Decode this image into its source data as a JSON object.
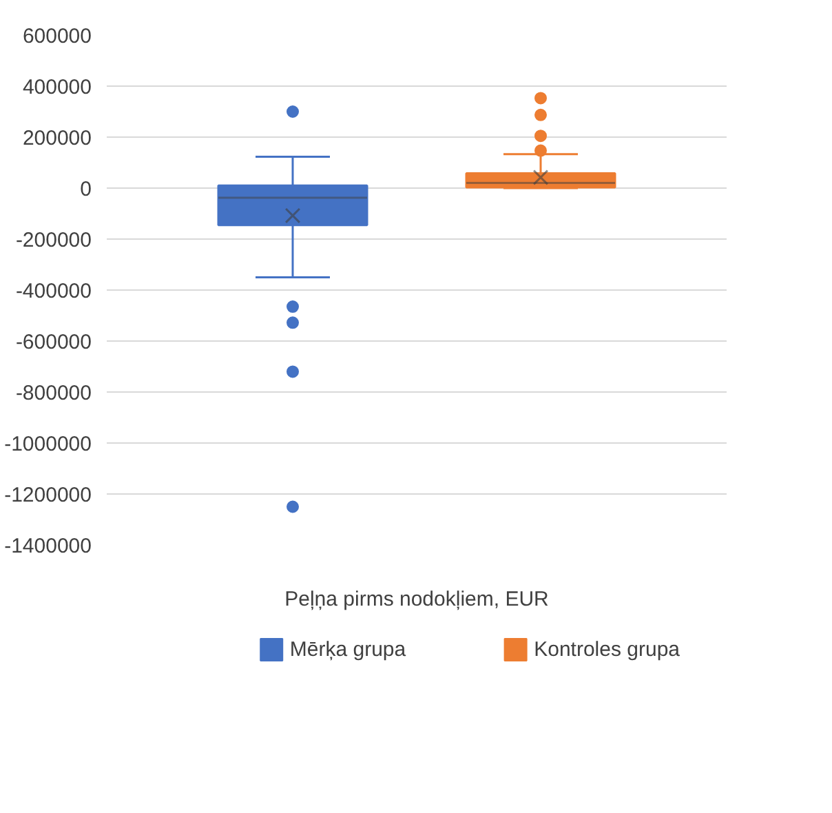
{
  "chart_data": {
    "type": "box",
    "categories": [
      "Peļņa pirms nodokļiem, EUR"
    ],
    "series": [
      {
        "name": "Mērķa grupa",
        "color": "#4472c4",
        "boxes": [
          {
            "low": -350000,
            "q1": -145000,
            "median": -38000,
            "q3": 10000,
            "high": 123000,
            "mean": -108000,
            "outliers": [
              300000,
              -465000,
              -528000,
              -720000,
              -1250000
            ]
          }
        ]
      },
      {
        "name": "Kontroles grupa",
        "color": "#ed7d31",
        "boxes": [
          {
            "low": 0,
            "q1": 3000,
            "median": 20000,
            "q3": 58000,
            "high": 133000,
            "mean": 42000,
            "outliers": [
              353000,
              287000,
              205000,
              147000
            ]
          }
        ]
      }
    ],
    "ylim": [
      -1400000,
      600000
    ],
    "yticks": [
      -1400000,
      -1200000,
      -1000000,
      -800000,
      -600000,
      -400000,
      -200000,
      0,
      200000,
      400000,
      600000
    ],
    "grid": "y",
    "legend": "bottom"
  }
}
